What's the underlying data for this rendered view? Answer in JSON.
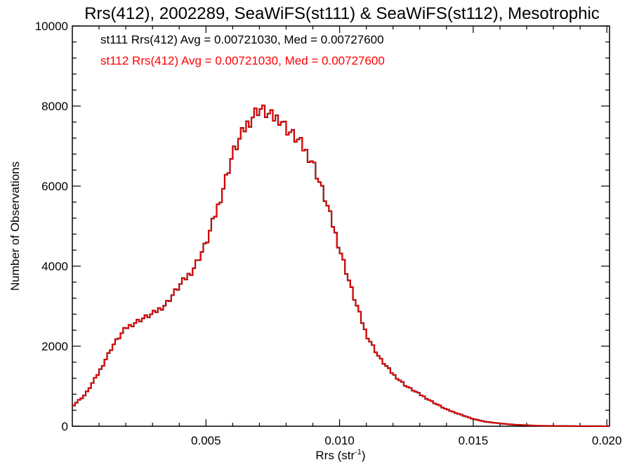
{
  "chart_data": {
    "type": "line",
    "title": "Rrs(412), 2002289, SeaWiFS(st111) & SeaWiFS(st112), Mesotrophic",
    "xlabel": "Rrs (str",
    "xlabel_sup": "-1",
    "xlabel_end": ")",
    "ylabel": "Number of Observations",
    "xlim": [
      0.0,
      0.0201
    ],
    "ylim": [
      0,
      10000
    ],
    "x_ticks": [
      0.005,
      0.01,
      0.015,
      0.02
    ],
    "x_tick_labels": [
      "0.005",
      "0.010",
      "0.015",
      "0.020"
    ],
    "y_ticks": [
      0,
      2000,
      4000,
      6000,
      8000,
      10000
    ],
    "y_tick_labels": [
      "0",
      "2000",
      "4000",
      "6000",
      "8000",
      "10000"
    ],
    "legend_placement": "top-left",
    "grid": false,
    "bin_width": 0.0001,
    "series": [
      {
        "name": "st111",
        "color": "#000000",
        "annotation": "st111 Rrs(412) Avg = 0.00721030, Med = 0.00727600",
        "points": [
          [
            0.0,
            500
          ],
          [
            0.0005,
            800
          ],
          [
            0.001,
            1350
          ],
          [
            0.0015,
            2000
          ],
          [
            0.002,
            2450
          ],
          [
            0.0025,
            2650
          ],
          [
            0.003,
            2800
          ],
          [
            0.0035,
            3050
          ],
          [
            0.004,
            3500
          ],
          [
            0.0045,
            3900
          ],
          [
            0.005,
            4550
          ],
          [
            0.0055,
            5600
          ],
          [
            0.006,
            6800
          ],
          [
            0.0065,
            7500
          ],
          [
            0.0068,
            7800
          ],
          [
            0.007,
            7950
          ],
          [
            0.0075,
            7700
          ],
          [
            0.0078,
            7700
          ],
          [
            0.008,
            7450
          ],
          [
            0.0085,
            7100
          ],
          [
            0.009,
            6600
          ],
          [
            0.0095,
            5600
          ],
          [
            0.01,
            4450
          ],
          [
            0.0105,
            3300
          ],
          [
            0.011,
            2300
          ],
          [
            0.0115,
            1700
          ],
          [
            0.012,
            1300
          ],
          [
            0.0125,
            1000
          ],
          [
            0.013,
            800
          ],
          [
            0.0135,
            600
          ],
          [
            0.014,
            420
          ],
          [
            0.0145,
            300
          ],
          [
            0.015,
            180
          ],
          [
            0.0155,
            110
          ],
          [
            0.016,
            70
          ],
          [
            0.0165,
            40
          ],
          [
            0.017,
            25
          ],
          [
            0.0175,
            12
          ],
          [
            0.018,
            8
          ],
          [
            0.019,
            3
          ],
          [
            0.0201,
            1
          ]
        ]
      },
      {
        "name": "st112",
        "color": "#ff0000",
        "annotation": "st112 Rrs(412) Avg = 0.00721030, Med = 0.00727600",
        "points": [
          [
            0.0,
            500
          ],
          [
            0.0005,
            800
          ],
          [
            0.001,
            1350
          ],
          [
            0.0015,
            2000
          ],
          [
            0.002,
            2450
          ],
          [
            0.0025,
            2650
          ],
          [
            0.003,
            2800
          ],
          [
            0.0035,
            3050
          ],
          [
            0.004,
            3500
          ],
          [
            0.0045,
            3900
          ],
          [
            0.005,
            4550
          ],
          [
            0.0055,
            5600
          ],
          [
            0.006,
            6800
          ],
          [
            0.0065,
            7500
          ],
          [
            0.0068,
            7800
          ],
          [
            0.007,
            7950
          ],
          [
            0.0075,
            7700
          ],
          [
            0.0078,
            7700
          ],
          [
            0.008,
            7450
          ],
          [
            0.0085,
            7100
          ],
          [
            0.009,
            6600
          ],
          [
            0.0095,
            5600
          ],
          [
            0.01,
            4450
          ],
          [
            0.0105,
            3300
          ],
          [
            0.011,
            2300
          ],
          [
            0.0115,
            1700
          ],
          [
            0.012,
            1300
          ],
          [
            0.0125,
            1000
          ],
          [
            0.013,
            800
          ],
          [
            0.0135,
            600
          ],
          [
            0.014,
            420
          ],
          [
            0.0145,
            300
          ],
          [
            0.015,
            180
          ],
          [
            0.0155,
            110
          ],
          [
            0.016,
            70
          ],
          [
            0.0165,
            40
          ],
          [
            0.017,
            25
          ],
          [
            0.0175,
            12
          ],
          [
            0.018,
            8
          ],
          [
            0.019,
            3
          ],
          [
            0.0201,
            1
          ]
        ]
      }
    ]
  }
}
